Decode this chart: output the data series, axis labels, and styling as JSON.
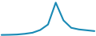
{
  "x": [
    0,
    1,
    2,
    3,
    4,
    5,
    6,
    7,
    8,
    9,
    10,
    11,
    12
  ],
  "y": [
    200,
    250,
    350,
    600,
    1000,
    2000,
    4000,
    12000,
    5500,
    2800,
    2200,
    1900,
    1600
  ],
  "line_color": "#1a8ab5",
  "background_color": "#ffffff",
  "linewidth": 1.5
}
